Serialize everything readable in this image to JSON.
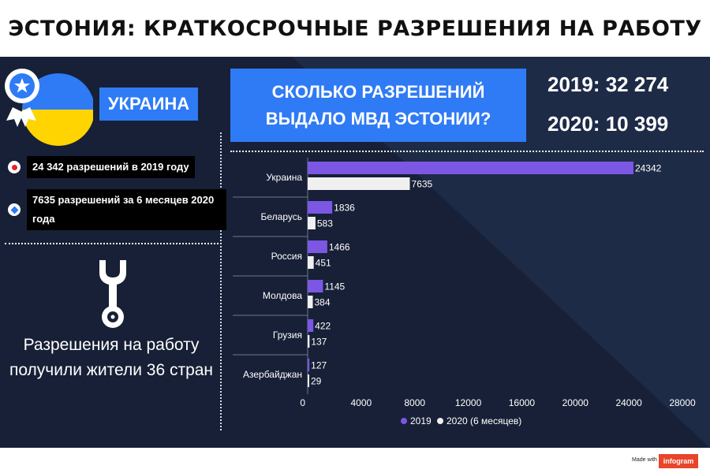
{
  "title": "ЭСТОНИЯ: КРАТКОСРОЧНЫЕ РАЗРЕШЕНИЯ НА РАБОТУ",
  "left_panel": {
    "country": "УКРАИНА",
    "facts": [
      {
        "icon": "red-dot-icon",
        "color": "#e8202a",
        "text": "24 342 разрешений в 2019 году"
      },
      {
        "icon": "blue-diamond-icon",
        "color": "#2f7bf5",
        "text": "7635 разрешений за 6 месяцев 2020 года"
      }
    ],
    "wrench_icon": "wrench-icon",
    "bottom_text": "Разрешения на работу получили жители 36 стран"
  },
  "question": "СКОЛЬКО РАЗРЕШЕНИЙ ВЫДАЛО МВД ЭСТОНИИ?",
  "totals": {
    "y2019": "2019: 32 274",
    "y2020": "2020: 10 399"
  },
  "colors": {
    "panel": "#1e2b47",
    "accent_blue": "#2f7bf5",
    "series_2019": "#7b57e4",
    "series_2020": "#f0f0f0"
  },
  "chart_data": {
    "type": "bar",
    "orientation": "horizontal",
    "categories": [
      "Украина",
      "Беларусь",
      "Россия",
      "Молдова",
      "Грузия",
      "Азербайджан"
    ],
    "series": [
      {
        "name": "2019",
        "color": "#7b57e4",
        "values": [
          24342,
          1836,
          1466,
          1145,
          422,
          127
        ]
      },
      {
        "name": "2020 (6 месяцев)",
        "color": "#f0f0f0",
        "values": [
          7635,
          583,
          451,
          384,
          137,
          29
        ]
      }
    ],
    "xlim": [
      0,
      28000
    ],
    "xticks": [
      0,
      4000,
      8000,
      12000,
      16000,
      20000,
      24000,
      28000
    ],
    "legend_position": "bottom",
    "grid": false
  },
  "footer": {
    "made_with": "Made with",
    "brand": "infogram"
  }
}
